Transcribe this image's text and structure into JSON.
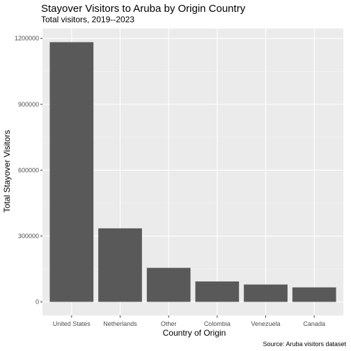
{
  "chart_data": {
    "type": "bar",
    "title": "Stayover Visitors to Aruba by Origin Country",
    "subtitle": "Total visitors, 2019--2023",
    "xlabel": "Country of Origin",
    "ylabel": "Total Stayover Visitors",
    "caption": "Source: Aruba visitors dataset",
    "categories": [
      "United States",
      "Netherlands",
      "Other",
      "Colombia",
      "Venezuela",
      "Canada"
    ],
    "values": [
      1183000,
      335000,
      155000,
      93000,
      79000,
      66000
    ],
    "ylim": [
      -62000,
      1245000
    ],
    "yticks": [
      0,
      300000,
      600000,
      900000,
      1200000
    ],
    "ytick_labels": [
      "0",
      "300000",
      "600000",
      "900000",
      "1200000"
    ],
    "grid": true,
    "legend": "none",
    "colors": {
      "bar": "#595959",
      "panel": "#ebebeb",
      "grid_major": "#ffffff",
      "grid_minor": "#f5f5f5",
      "tick_text": "#4d4d4d",
      "text": "#000000"
    }
  }
}
